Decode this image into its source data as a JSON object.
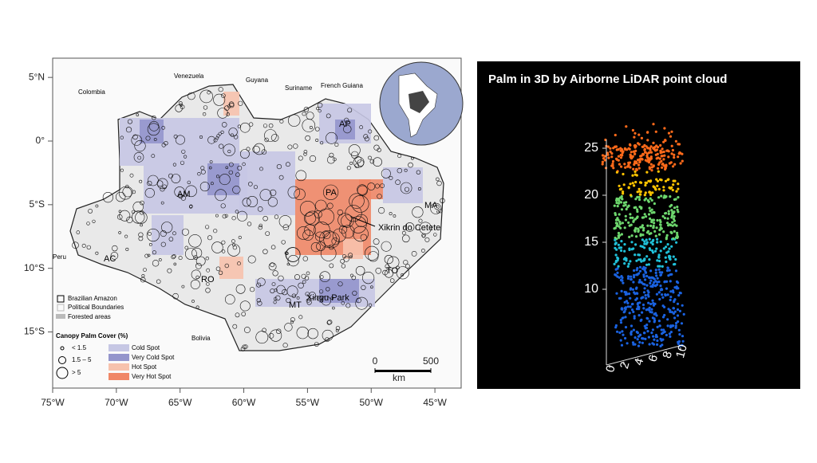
{
  "map": {
    "lon_ticks": [
      {
        "value": -75,
        "label": "75°W"
      },
      {
        "value": -70,
        "label": "70°W"
      },
      {
        "value": -65,
        "label": "65°W"
      },
      {
        "value": -60,
        "label": "60°W"
      },
      {
        "value": -55,
        "label": "55°W"
      },
      {
        "value": -50,
        "label": "50°W"
      },
      {
        "value": -45,
        "label": "45°W"
      }
    ],
    "lat_ticks": [
      {
        "value": 5,
        "label": "5°N"
      },
      {
        "value": 0,
        "label": "0°"
      },
      {
        "value": -5,
        "label": "5°S"
      },
      {
        "value": -10,
        "label": "10°S"
      },
      {
        "value": -15,
        "label": "15°S"
      }
    ],
    "countries": [
      "Colombia",
      "Venezuela",
      "Guyana",
      "Suriname",
      "French Guiana",
      "Peru",
      "Bolivia"
    ],
    "states": [
      "AP",
      "AM",
      "PA",
      "MA",
      "AC",
      "RO",
      "TO",
      "MT"
    ],
    "sites": [
      "Xikrin do Cetete",
      "Xingu Park"
    ],
    "legend": {
      "boundaries": [
        "Brazilian Amazon",
        "Political Boundaries",
        "Forested areas"
      ],
      "cover_title": "Canopy Palm Cover (%)",
      "cover_classes": [
        "< 1.5",
        "1.5 – 5",
        "> 5"
      ],
      "spots": [
        "Cold Spot",
        "Very Cold Spot",
        "Hot Spot",
        "Very Hot Spot"
      ]
    },
    "scale_bar": {
      "ticks": [
        0,
        500
      ],
      "unit": "km"
    }
  },
  "lidar": {
    "title": "Palm in 3D by Airborne LiDAR point cloud",
    "zticks": [
      10,
      15,
      20,
      25
    ],
    "xticks": [
      0,
      2,
      4,
      6,
      8,
      10
    ]
  }
}
